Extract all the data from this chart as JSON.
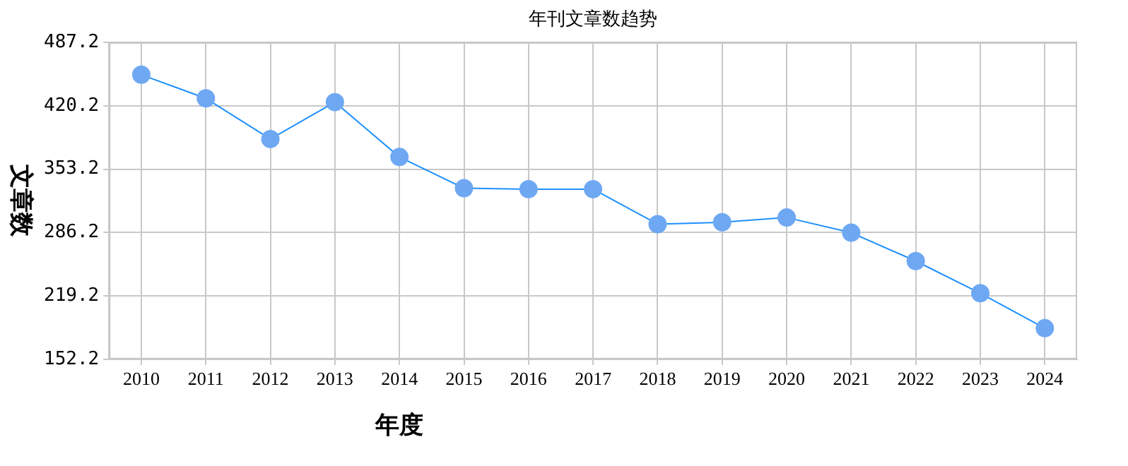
{
  "chart_data": {
    "type": "line",
    "title": "年刊文章数趋势",
    "xlabel": "年度",
    "ylabel": "文章数",
    "categories": [
      "2010",
      "2011",
      "2012",
      "2013",
      "2014",
      "2015",
      "2016",
      "2017",
      "2018",
      "2019",
      "2020",
      "2021",
      "2022",
      "2023",
      "2024"
    ],
    "series": [
      {
        "color": "#1e90ff",
        "values": [
          453,
          428,
          385,
          424,
          366,
          333,
          332,
          332,
          295,
          297,
          302,
          286,
          256,
          222,
          185
        ]
      }
    ],
    "ylim": [
      152.2,
      487.2
    ],
    "yticks": [
      {
        "value": 152.2,
        "label": "152.2"
      },
      {
        "value": 219.2,
        "label": "219.2"
      },
      {
        "value": 286.2,
        "label": "286.2"
      },
      {
        "value": 353.2,
        "label": "353.2"
      },
      {
        "value": 420.2,
        "label": "420.2"
      },
      {
        "value": 487.2,
        "label": "487.2"
      }
    ],
    "grid": true,
    "legend": false,
    "marker": "circle",
    "line_style": "solid"
  }
}
